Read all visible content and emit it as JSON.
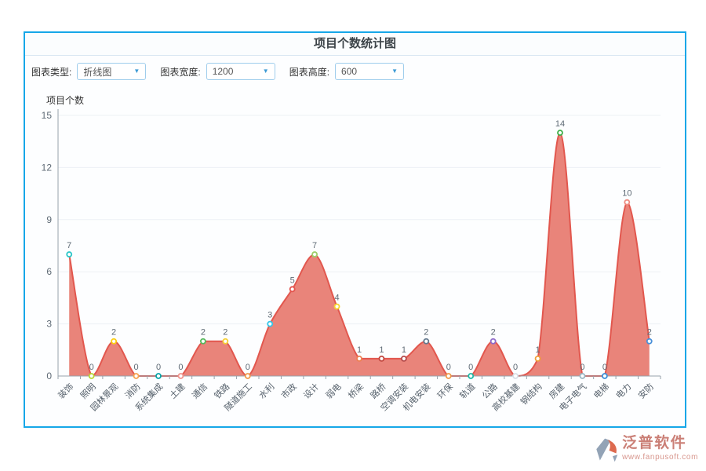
{
  "header": {
    "title": "项目个数统计图"
  },
  "controls": [
    {
      "label": "图表类型:",
      "value": "折线图"
    },
    {
      "label": "图表宽度:",
      "value": "1200"
    },
    {
      "label": "图表高度:",
      "value": "600"
    }
  ],
  "chart_data": {
    "type": "area",
    "title": "项目个数",
    "categories": [
      "装饰",
      "照明",
      "园林景观",
      "消防",
      "系统集成",
      "土建",
      "通信",
      "铁路",
      "隧道施工",
      "水利",
      "市政",
      "设计",
      "弱电",
      "桥梁",
      "路桥",
      "空调安装",
      "机电安装",
      "环保",
      "轨道",
      "公路",
      "高校基建",
      "钢结构",
      "房建",
      "电子电气",
      "电梯",
      "电力",
      "安防"
    ],
    "values": [
      7,
      0,
      2,
      0,
      0,
      0,
      2,
      2,
      0,
      3,
      5,
      7,
      4,
      1,
      1,
      1,
      2,
      0,
      0,
      2,
      0,
      1,
      14,
      0,
      0,
      10,
      2
    ],
    "xlabel": "",
    "ylabel": "项目个数",
    "ylim": [
      0,
      15
    ],
    "yticks": [
      0,
      3,
      6,
      9,
      12,
      15
    ],
    "grid": true,
    "legend": "none",
    "x_label_rotation": -45,
    "smooth": true,
    "colors": {
      "line": "#e2574e",
      "fill": "#e87d73",
      "grid": "#edf1f6",
      "axis": "#98a2ab",
      "tick_label": "#5f6b76",
      "value_label": "#5f6b76",
      "category_label": "#55606b",
      "points": [
        "#2ec7c9",
        "#b6d634",
        "#fcce10",
        "#f7a44e",
        "#0aa5a8",
        "#f0948c",
        "#55b95c",
        "#f6cf34",
        "#f09a4a",
        "#32c5e9",
        "#e4544e",
        "#9ece6a",
        "#f6d32d",
        "#ee7f52",
        "#c2473f",
        "#b5494a",
        "#64798e",
        "#f09a4a",
        "#1fb8a5",
        "#8f6bc9",
        "#d9e0e7",
        "#f0a03c",
        "#3fae49",
        "#9ab7c4",
        "#3a8fd8",
        "#ee8b80",
        "#4a90d9"
      ]
    }
  },
  "footer": {
    "brand": "泛普软件",
    "website": "www.fanpusoft.com",
    "brand_color": "#cb8077"
  }
}
